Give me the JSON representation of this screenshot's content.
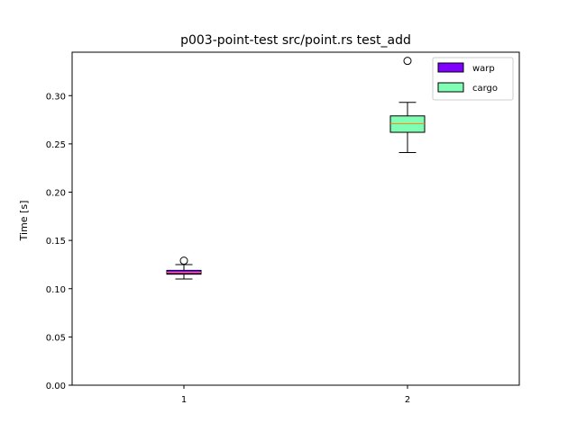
{
  "chart_data": {
    "type": "box",
    "title": "p003-point-test src/point.rs test_add",
    "xlabel": "",
    "ylabel": "Time [s]",
    "categories": [
      "1",
      "2"
    ],
    "ylim": [
      0.0,
      0.345
    ],
    "yticks": [
      0.0,
      0.05,
      0.1,
      0.15,
      0.2,
      0.25,
      0.3
    ],
    "ytick_labels": [
      "0.00",
      "0.05",
      "0.10",
      "0.15",
      "0.20",
      "0.25",
      "0.30"
    ],
    "grid": false,
    "legend_position": "top-right",
    "series": [
      {
        "name": "warp",
        "category": "1",
        "color": "#7f00ff",
        "median_color": "#ff7f0e",
        "whisker_low": 0.11,
        "q1": 0.115,
        "median": 0.117,
        "q3": 0.119,
        "whisker_high": 0.125,
        "outliers": [
          0.129
        ]
      },
      {
        "name": "cargo",
        "category": "2",
        "color": "#80ffb4",
        "median_color": "#ff7f0e",
        "whisker_low": 0.241,
        "q1": 0.262,
        "median": 0.271,
        "q3": 0.279,
        "whisker_high": 0.293,
        "outliers": [
          0.336
        ]
      }
    ]
  }
}
